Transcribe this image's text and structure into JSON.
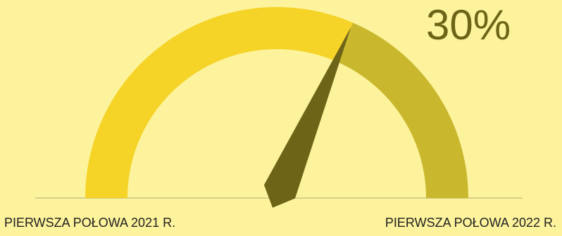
{
  "chart_data": {
    "type": "gauge",
    "value": 30,
    "value_label": "30%",
    "progress": 63,
    "progress_lim": [
      0,
      100
    ],
    "start_label": "PIERWSZA POŁOWA 2021 R.",
    "end_label": "PIERWSZA POŁOWA 2022 R.",
    "colors": {
      "filled": "#f5d327",
      "rest": "#c9b82e",
      "needle": "#6e6418",
      "baseline": "#d8cf8c"
    }
  }
}
